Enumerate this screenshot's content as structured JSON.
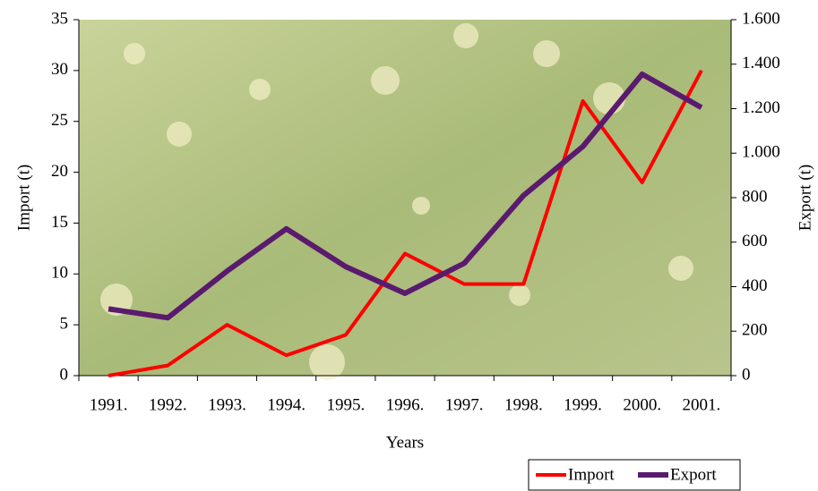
{
  "chart_data": {
    "type": "line",
    "categories": [
      "1991.",
      "1992.",
      "1993.",
      "1994.",
      "1995.",
      "1996.",
      "1997.",
      "1998.",
      "1999.",
      "2000.",
      "2001."
    ],
    "x_label": "Years",
    "y_label": "Import (t)",
    "y2_label": "Export (t)",
    "ylim": [
      0,
      35
    ],
    "yticks": [
      0,
      5,
      10,
      15,
      20,
      25,
      30,
      35
    ],
    "y2lim": [
      0,
      1600
    ],
    "y2ticks": [
      0,
      200,
      400,
      600,
      800,
      {
        "value": 1000,
        "label": "1.000"
      },
      {
        "value": 1200,
        "label": "1.200"
      },
      {
        "value": 1400,
        "label": "1.400"
      },
      {
        "value": 1600,
        "label": "1.600"
      }
    ],
    "legend": "bottom-right",
    "series": [
      {
        "name": "Import",
        "color": "#ff0000",
        "values": [
          0,
          1,
          5,
          2,
          4,
          12,
          9,
          9,
          27,
          19,
          30
        ]
      },
      {
        "name": "Export",
        "color": "#5a1a6e",
        "axis": "y2",
        "values": [
          300,
          260,
          470,
          660,
          490,
          370,
          505,
          810,
          1030,
          1355,
          1205
        ]
      }
    ]
  }
}
